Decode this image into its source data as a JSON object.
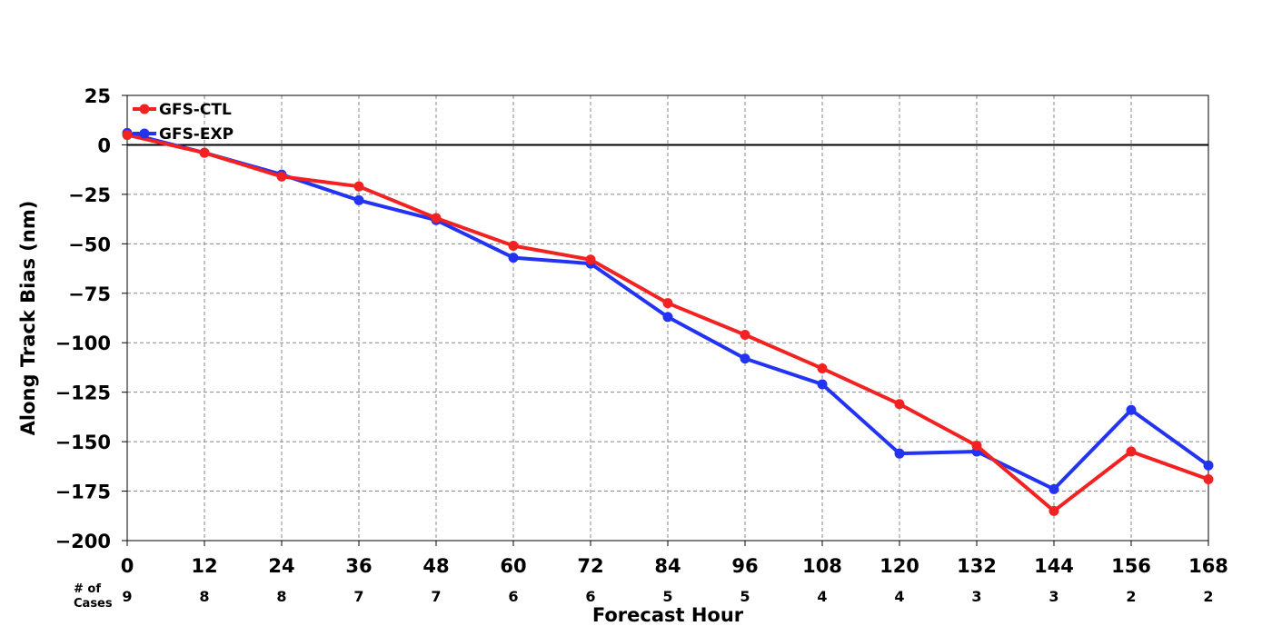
{
  "chart_data": {
    "type": "line",
    "title": "",
    "xlabel": "Forecast Hour",
    "ylabel": "Along Track Bias (nm)",
    "x": [
      0,
      12,
      24,
      36,
      48,
      60,
      72,
      84,
      96,
      108,
      120,
      132,
      144,
      156,
      168
    ],
    "x_tick_labels": [
      "0",
      "12",
      "24",
      "36",
      "48",
      "60",
      "72",
      "84",
      "96",
      "108",
      "120",
      "132",
      "144",
      "156",
      "168"
    ],
    "xlim": [
      0,
      168
    ],
    "ylim": [
      -200,
      25
    ],
    "y_ticks": [
      25,
      0,
      -25,
      -50,
      -75,
      -100,
      -125,
      -150,
      -175,
      -200
    ],
    "y_tick_labels": [
      "25",
      "0",
      "−25",
      "−50",
      "−75",
      "−100",
      "−125",
      "−150",
      "−175",
      "−200"
    ],
    "grid": true,
    "zero_line": true,
    "legend_position": "top-left",
    "cases_label_line1": "# of",
    "cases_label_line2": "Cases",
    "cases": [
      "9",
      "8",
      "8",
      "7",
      "7",
      "6",
      "6",
      "5",
      "5",
      "4",
      "4",
      "3",
      "3",
      "2",
      "2"
    ],
    "series": [
      {
        "name": "GFS-CTL",
        "color": "#f22222",
        "values": [
          5,
          -4,
          -16,
          -21,
          -37,
          -51,
          -58,
          -80,
          -96,
          -113,
          -131,
          -152,
          -185,
          -155,
          -169
        ]
      },
      {
        "name": "GFS-EXP",
        "color": "#2233f2",
        "values": [
          6,
          -4,
          -15,
          -28,
          -38,
          -57,
          -60,
          -87,
          -108,
          -121,
          -156,
          -155,
          -174,
          -134,
          -162
        ]
      }
    ]
  }
}
